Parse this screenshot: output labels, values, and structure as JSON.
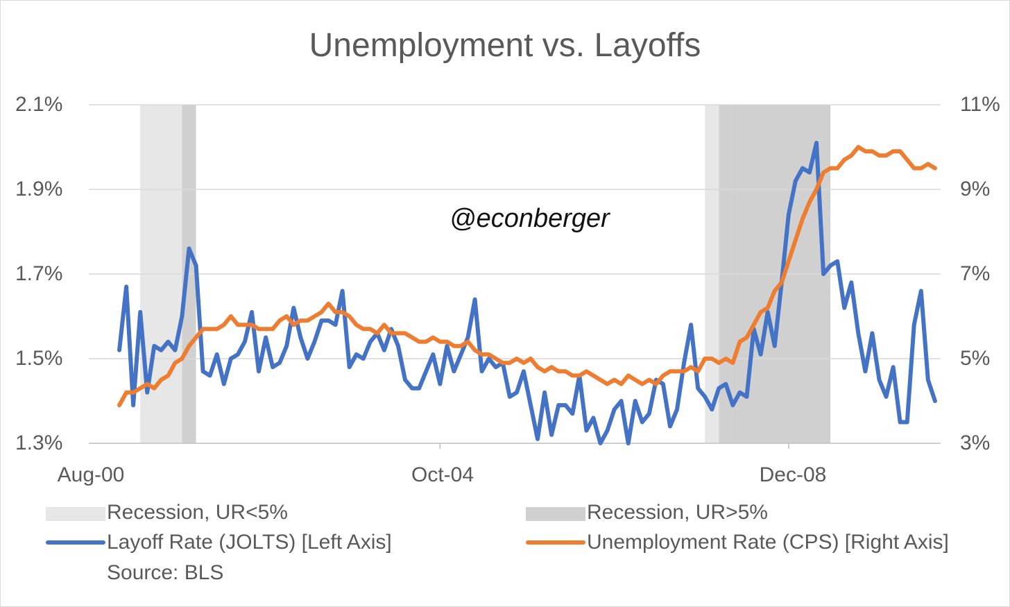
{
  "chart_data": {
    "type": "line",
    "title": "Unemployment vs. Layoffs",
    "watermark": "@econberger",
    "x_ticks": [
      "Aug-00",
      "Oct-04",
      "Dec-08"
    ],
    "y_left": {
      "min": 1.3,
      "max": 2.1,
      "ticks": [
        "1.3%",
        "1.5%",
        "1.7%",
        "1.9%",
        "2.1%"
      ]
    },
    "y_right": {
      "min": 3,
      "max": 11,
      "ticks": [
        "3%",
        "5%",
        "7%",
        "9%",
        "11%"
      ]
    },
    "x_start": "2000-12",
    "recessions": [
      {
        "start": 3,
        "end": 9,
        "category": "Recession, UR<5%"
      },
      {
        "start": 9,
        "end": 11,
        "category": "Recession, UR>5%"
      },
      {
        "start": 84,
        "end": 86,
        "category": "Recession, UR<5%"
      },
      {
        "start": 86,
        "end": 88,
        "category": "Recession, UR>5%"
      },
      {
        "start": 88,
        "end": 102,
        "category": "Recession, UR>5%"
      }
    ],
    "series": [
      {
        "name": "Layoff Rate (JOLTS) [Left Axis]",
        "axis": "left",
        "color": "#4472c4",
        "values": [
          1.52,
          1.67,
          1.39,
          1.61,
          1.42,
          1.53,
          1.52,
          1.54,
          1.52,
          1.6,
          1.76,
          1.72,
          1.47,
          1.46,
          1.51,
          1.44,
          1.5,
          1.51,
          1.54,
          1.61,
          1.47,
          1.55,
          1.48,
          1.49,
          1.53,
          1.62,
          1.55,
          1.5,
          1.54,
          1.59,
          1.59,
          1.58,
          1.66,
          1.48,
          1.51,
          1.5,
          1.54,
          1.56,
          1.52,
          1.57,
          1.53,
          1.45,
          1.43,
          1.43,
          1.47,
          1.51,
          1.44,
          1.53,
          1.47,
          1.51,
          1.55,
          1.64,
          1.47,
          1.5,
          1.48,
          1.49,
          1.41,
          1.42,
          1.47,
          1.39,
          1.31,
          1.42,
          1.32,
          1.39,
          1.39,
          1.37,
          1.46,
          1.33,
          1.36,
          1.3,
          1.33,
          1.38,
          1.4,
          1.3,
          1.4,
          1.35,
          1.37,
          1.45,
          1.44,
          1.34,
          1.38,
          1.49,
          1.58,
          1.43,
          1.41,
          1.38,
          1.43,
          1.44,
          1.39,
          1.42,
          1.41,
          1.57,
          1.51,
          1.61,
          1.53,
          1.68,
          1.84,
          1.92,
          1.95,
          1.94,
          2.01,
          1.7,
          1.72,
          1.73,
          1.62,
          1.68,
          1.56,
          1.47,
          1.56,
          1.45,
          1.41,
          1.48,
          1.35,
          1.35,
          1.58,
          1.66,
          1.45,
          1.4
        ]
      },
      {
        "name": "Unemployment Rate (CPS) [Right Axis]",
        "axis": "right",
        "color": "#ed7d31",
        "values": [
          3.9,
          4.2,
          4.2,
          4.3,
          4.4,
          4.3,
          4.5,
          4.6,
          4.9,
          5.0,
          5.3,
          5.5,
          5.7,
          5.7,
          5.7,
          5.8,
          6.0,
          5.8,
          5.8,
          5.8,
          5.7,
          5.7,
          5.7,
          5.9,
          6.0,
          5.8,
          5.9,
          5.9,
          6.0,
          6.1,
          6.3,
          6.1,
          6.1,
          6.0,
          5.8,
          5.7,
          5.7,
          5.6,
          5.8,
          5.6,
          5.6,
          5.6,
          5.5,
          5.4,
          5.4,
          5.5,
          5.4,
          5.4,
          5.3,
          5.3,
          5.4,
          5.2,
          5.1,
          5.1,
          5.0,
          4.9,
          4.9,
          5.0,
          4.9,
          5.0,
          4.8,
          4.7,
          4.8,
          4.7,
          4.7,
          4.6,
          4.6,
          4.7,
          4.6,
          4.5,
          4.4,
          4.5,
          4.4,
          4.6,
          4.5,
          4.4,
          4.5,
          4.4,
          4.6,
          4.7,
          4.7,
          4.7,
          4.8,
          4.7,
          5.0,
          5.0,
          4.9,
          5.0,
          4.9,
          5.4,
          5.5,
          5.8,
          6.1,
          6.2,
          6.6,
          6.8,
          7.3,
          7.8,
          8.3,
          8.7,
          9.0,
          9.4,
          9.5,
          9.5,
          9.7,
          9.8,
          10.0,
          9.9,
          9.9,
          9.8,
          9.8,
          9.9,
          9.9,
          9.7,
          9.5,
          9.5,
          9.6,
          9.5
        ]
      }
    ]
  },
  "legend": {
    "rec_low": {
      "label": "Recession, UR<5%",
      "color": "#e7e7e7"
    },
    "rec_high": {
      "label": "Recession, UR>5%",
      "color": "#d0d0d0"
    },
    "layoff": {
      "label": "Layoff Rate (JOLTS) [Left Axis]",
      "color": "#4472c4"
    },
    "unemp": {
      "label": "Unemployment Rate (CPS) [Right Axis]",
      "color": "#ed7d31"
    },
    "source": "Source: BLS"
  }
}
